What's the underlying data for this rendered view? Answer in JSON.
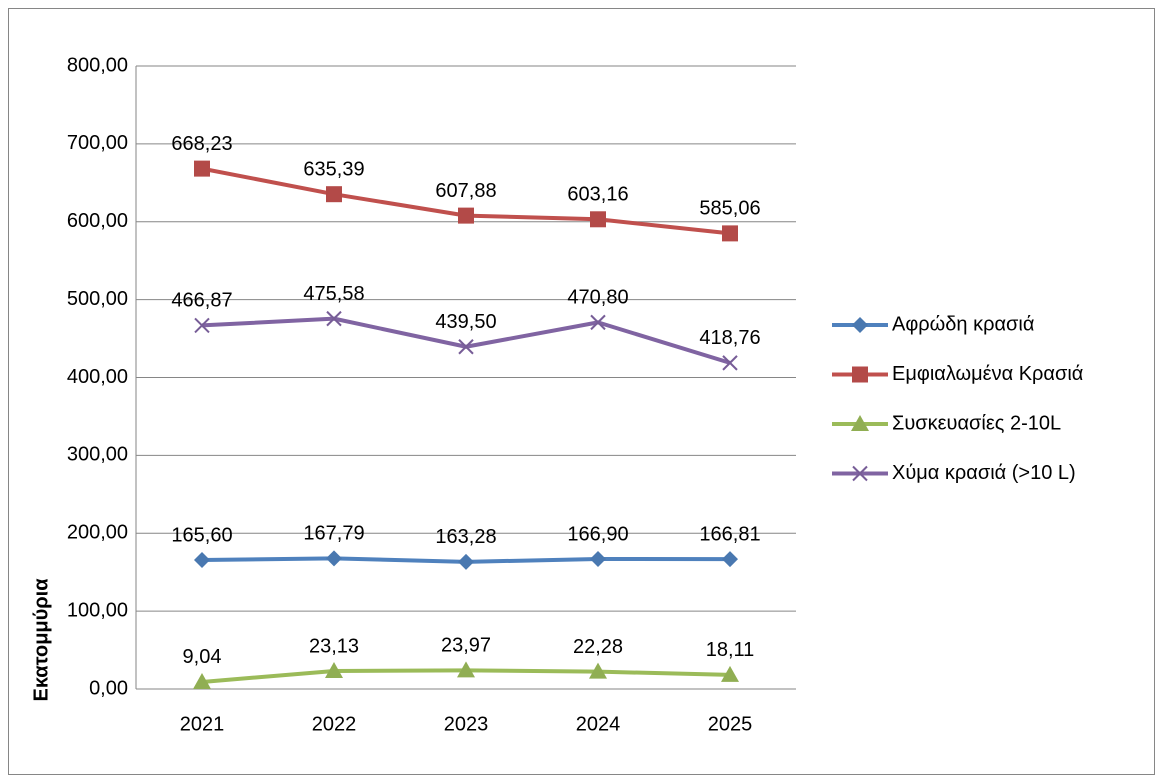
{
  "chart_data": {
    "type": "line",
    "y_label": "Εκατομμύρια",
    "categories": [
      "2021",
      "2022",
      "2023",
      "2024",
      "2025"
    ],
    "series": [
      {
        "name": "Αφρώδη κρασιά",
        "color": "#4f81bd",
        "marker": "diamond",
        "values": [
          165.6,
          167.79,
          163.28,
          166.9,
          166.81
        ],
        "value_labels": [
          "165,60",
          "167,79",
          "163,28",
          "166,90",
          "166,81"
        ]
      },
      {
        "name": "Εμφιαλωμένα Κρασιά",
        "color": "#c0504d",
        "marker": "square",
        "values": [
          668.23,
          635.39,
          607.88,
          603.16,
          585.06
        ],
        "value_labels": [
          "668,23",
          "635,39",
          "607,88",
          "603,16",
          "585,06"
        ]
      },
      {
        "name": "Συσκευασίες 2-10L",
        "color": "#9bbb59",
        "marker": "triangle",
        "values": [
          9.04,
          23.13,
          23.97,
          22.28,
          18.11
        ],
        "value_labels": [
          "9,04",
          "23,13",
          "23,97",
          "22,28",
          "18,11"
        ]
      },
      {
        "name": "Χύμα κρασιά (>10 L)",
        "color": "#8064a2",
        "marker": "x",
        "values": [
          466.87,
          475.58,
          439.5,
          470.8,
          418.76
        ],
        "value_labels": [
          "466,87",
          "475,58",
          "439,50",
          "470,80",
          "418,76"
        ]
      }
    ],
    "ylim": [
      0,
      800
    ],
    "yticks": [
      {
        "value": 0,
        "label": "0,00"
      },
      {
        "value": 100,
        "label": "100,00"
      },
      {
        "value": 200,
        "label": "200,00"
      },
      {
        "value": 300,
        "label": "300,00"
      },
      {
        "value": 400,
        "label": "400,00"
      },
      {
        "value": 500,
        "label": "500,00"
      },
      {
        "value": 600,
        "label": "600,00"
      },
      {
        "value": 700,
        "label": "700,00"
      },
      {
        "value": 800,
        "label": "800,00"
      }
    ],
    "grid": true,
    "legend": "right"
  }
}
